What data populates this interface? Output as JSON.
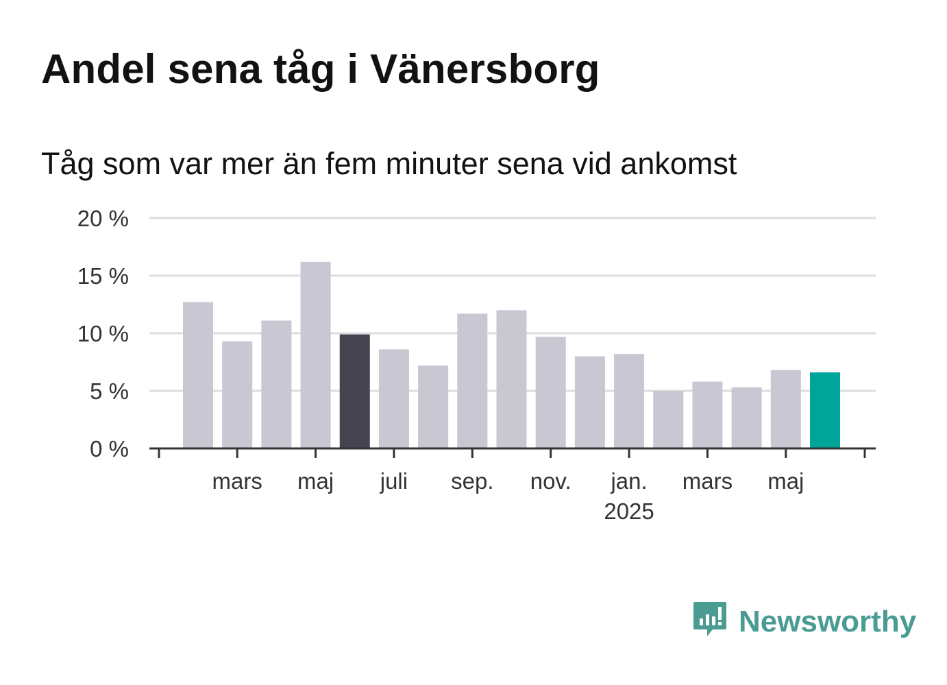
{
  "title": "Andel sena tåg i Vänersborg",
  "subtitle": "Tåg som var mer än fem minuter sena vid ankomst",
  "brand": {
    "name": "Newsworthy",
    "icon": "newsworthy-logo-icon",
    "color": "#4a9c93"
  },
  "colors": {
    "default_bar": "#c8c7d2",
    "highlight_bar": "#45434f",
    "latest_bar": "#00a59a",
    "grid": "#dddddd",
    "axis": "#333333"
  },
  "chart_data": {
    "type": "bar",
    "title": "Andel sena tåg i Vänersborg",
    "subtitle": "Tåg som var mer än fem minuter sena vid ankomst",
    "ylim": [
      0,
      20
    ],
    "yticks": [
      0,
      5,
      10,
      15,
      20
    ],
    "ytick_labels": [
      "0 %",
      "5 %",
      "10 %",
      "15 %",
      "20 %"
    ],
    "grid": true,
    "categories": [
      "2024-02",
      "2024-03",
      "2024-04",
      "2024-05",
      "2024-06",
      "2024-07",
      "2024-08",
      "2024-09",
      "2024-10",
      "2024-11",
      "2024-12",
      "2025-01",
      "2025-02",
      "2025-03",
      "2025-04",
      "2025-05",
      "2025-06"
    ],
    "values": [
      12.7,
      9.3,
      11.1,
      16.2,
      9.9,
      8.6,
      7.2,
      11.7,
      12.0,
      9.7,
      8.0,
      8.2,
      5.0,
      5.8,
      5.3,
      6.8,
      6.6
    ],
    "highlight": {
      "2024-06": "highlight_bar",
      "2025-06": "latest_bar"
    },
    "x_tick_labels": [
      {
        "label": "mars",
        "sub": ""
      },
      {
        "label": "maj",
        "sub": ""
      },
      {
        "label": "juli",
        "sub": ""
      },
      {
        "label": "sep.",
        "sub": ""
      },
      {
        "label": "nov.",
        "sub": ""
      },
      {
        "label": "jan.",
        "sub": "2025"
      },
      {
        "label": "mars",
        "sub": ""
      },
      {
        "label": "maj",
        "sub": ""
      }
    ]
  }
}
